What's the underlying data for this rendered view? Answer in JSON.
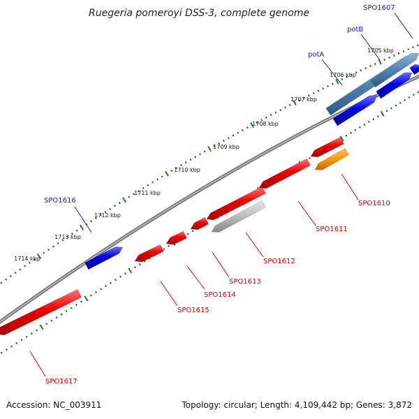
{
  "title": "Ruegeria pomeroyi DSS-3, complete genome",
  "footer": {
    "accession": "Accession: NC_003911",
    "topology": "Topology: circular; Length: 4,109,442 bp; Genes: 3,872"
  },
  "colors": {
    "forward_gene": "#0000ee",
    "reverse_gene": "#ee0000",
    "selected_operon": "#4f82b0",
    "highlight_gene": "#ff9900",
    "pseudo_gene": "#bbbbbb",
    "backbone": "#888888",
    "tick": "#1a7a1a",
    "label_forward": "#1a1aaa",
    "label_reverse": "#dd0000"
  },
  "scale_ticks": [
    "1705 kbp",
    "1706 kbp",
    "1707 kbp",
    "1708 kbp",
    "1709 kbp",
    "1710 kbp",
    "1711 kbp",
    "1712 kbp",
    "1713 kbp",
    "1714 kbp"
  ],
  "genes": [
    {
      "name": "SPO1607",
      "strand": "forward",
      "kind": "operon",
      "labeled": true
    },
    {
      "name": "potB",
      "strand": "forward",
      "kind": "operon",
      "labeled": true
    },
    {
      "name": "potA",
      "strand": "forward",
      "kind": "operon",
      "labeled": true
    },
    {
      "name": "SPO1610",
      "strand": "reverse",
      "kind": "highlight",
      "labeled": true
    },
    {
      "name": "SPO1611",
      "strand": "reverse",
      "kind": "normal",
      "labeled": true
    },
    {
      "name": "SPO1612",
      "strand": "reverse",
      "kind": "pseudo",
      "labeled": true
    },
    {
      "name": "SPO1613",
      "strand": "reverse",
      "kind": "normal",
      "labeled": true
    },
    {
      "name": "SPO1614",
      "strand": "reverse",
      "kind": "normal",
      "labeled": true
    },
    {
      "name": "SPO1615",
      "strand": "reverse",
      "kind": "normal",
      "labeled": true
    },
    {
      "name": "SPO1616",
      "strand": "forward",
      "kind": "normal",
      "labeled": true
    },
    {
      "name": "SPO1617",
      "strand": "reverse",
      "kind": "normal",
      "labeled": true
    }
  ]
}
